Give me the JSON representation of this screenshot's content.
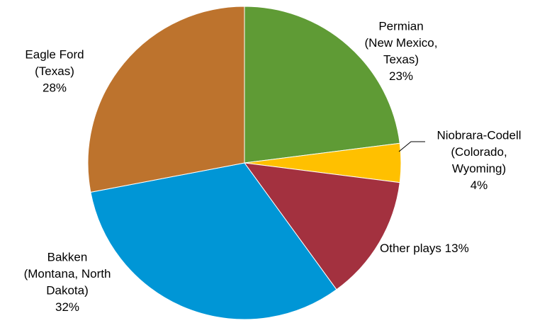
{
  "chart_data": {
    "type": "pie",
    "categories": [
      [
        "Permian",
        "(New Mexico,",
        "Texas)"
      ],
      [
        "Niobrara-Codell",
        "(Colorado,",
        "Wyoming)"
      ],
      [
        "Other plays"
      ],
      [
        "Bakken",
        "(Montana, North",
        "Dakota)"
      ],
      [
        "Eagle Ford",
        "(Texas)"
      ]
    ],
    "values": [
      23,
      4,
      13,
      32,
      28
    ],
    "value_labels": [
      "23%",
      "4%",
      "13%",
      "32%",
      "28%"
    ],
    "colors": [
      "#5f9b35",
      "#ffc000",
      "#a3313f",
      "#0096d6",
      "#bd732d"
    ]
  }
}
